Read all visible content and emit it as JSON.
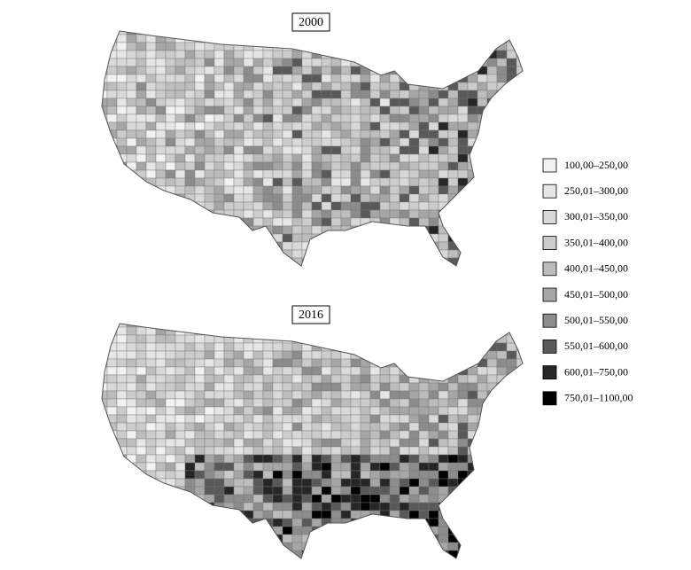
{
  "maps": [
    {
      "title": "2000"
    },
    {
      "title": "2016"
    }
  ],
  "legend": [
    {
      "label": "100,00–250,00",
      "color": "#f2f2f2"
    },
    {
      "label": "250,01–300,00",
      "color": "#e6e6e6"
    },
    {
      "label": "300,01–350,00",
      "color": "#d9d9d9"
    },
    {
      "label": "350,01–400,00",
      "color": "#cccccc"
    },
    {
      "label": "400,01–450,00",
      "color": "#bdbdbd"
    },
    {
      "label": "450,01–500,00",
      "color": "#a6a6a6"
    },
    {
      "label": "500,01–550,00",
      "color": "#8c8c8c"
    },
    {
      "label": "550,01–600,00",
      "color": "#595959"
    },
    {
      "label": "600,01–750,00",
      "color": "#262626"
    },
    {
      "label": "750,01–1100,00",
      "color": "#000000"
    }
  ]
}
